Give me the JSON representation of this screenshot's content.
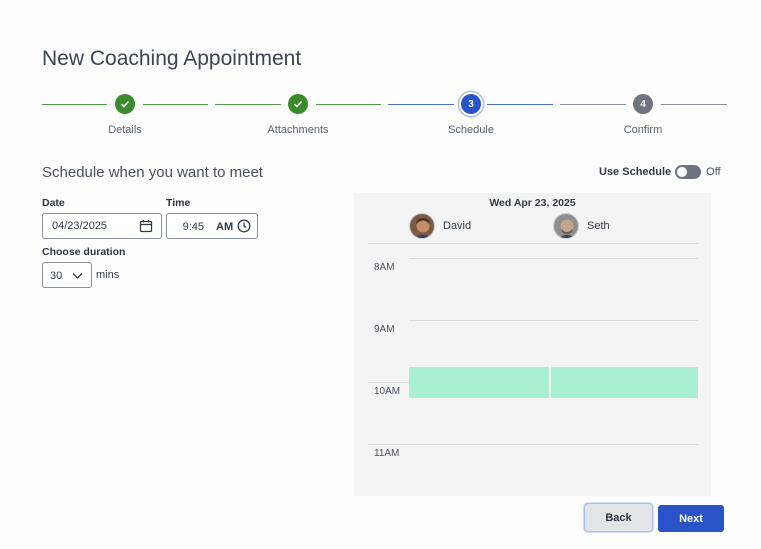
{
  "page": {
    "title": "New Coaching Appointment"
  },
  "stepper": {
    "steps": [
      {
        "label": "Details",
        "state": "complete",
        "marker": "✓"
      },
      {
        "label": "Attachments",
        "state": "complete",
        "marker": "✓"
      },
      {
        "label": "Schedule",
        "state": "current",
        "marker": "3"
      },
      {
        "label": "Confirm",
        "state": "upcoming",
        "marker": "4"
      }
    ]
  },
  "schedule": {
    "heading": "Schedule when you want to meet",
    "use_schedule_label": "Use Schedule",
    "use_schedule_state": "Off"
  },
  "form": {
    "date_label": "Date",
    "date_value": "04/23/2025",
    "time_label": "Time",
    "time_value": "9:45",
    "time_ampm": "AM",
    "duration_label": "Choose duration",
    "duration_value": "30",
    "duration_unit": "mins"
  },
  "calendar": {
    "date_header": "Wed Apr 23, 2025",
    "attendees": [
      {
        "name": "David"
      },
      {
        "name": "Seth"
      }
    ],
    "hours": [
      "8AM",
      "9AM",
      "10AM",
      "11AM"
    ],
    "appointment_color": "#a9f0d0"
  },
  "actions": {
    "back_label": "Back",
    "next_label": "Next"
  },
  "colors": {
    "accent": "#2a53c7",
    "complete": "#3c8a2e",
    "upcoming": "#6f7580"
  }
}
